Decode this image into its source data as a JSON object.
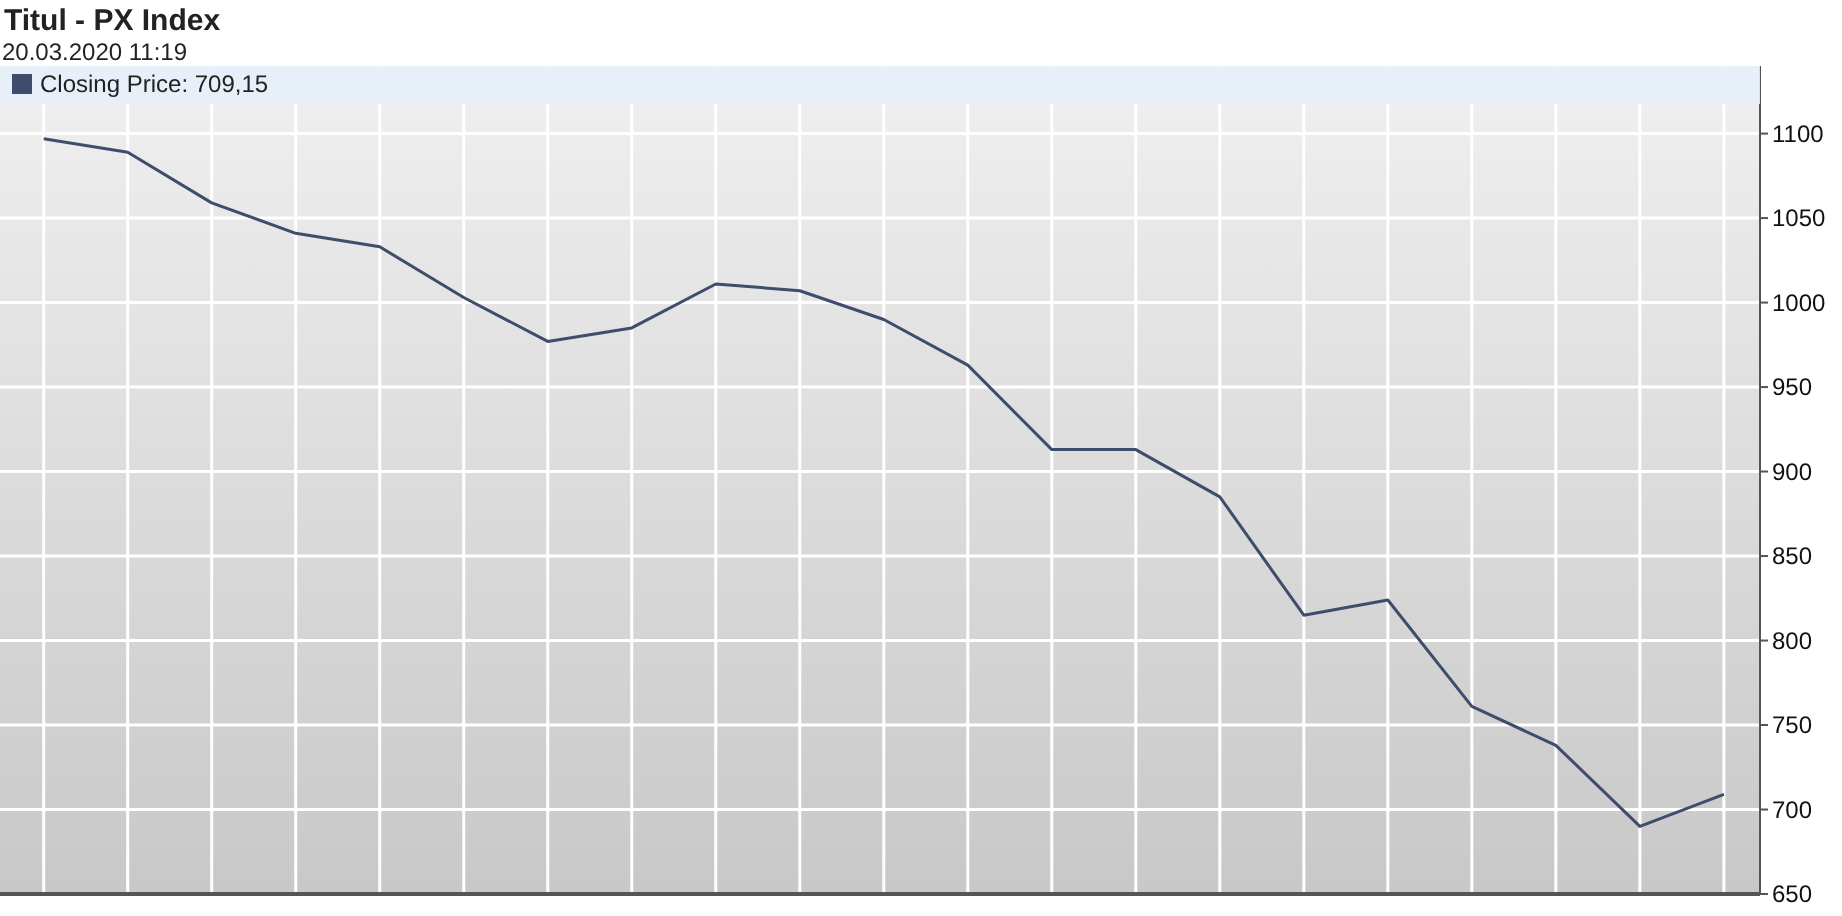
{
  "chart_data": {
    "type": "line",
    "title": "Titul - PX Index",
    "subtitle": "20.03.2020 11:19",
    "categories": [
      null,
      null,
      null,
      null,
      null,
      null,
      null,
      null,
      null,
      null,
      null,
      null,
      null,
      null,
      null,
      null,
      null,
      null,
      null,
      null,
      null
    ],
    "series": [
      {
        "name": "Closing Price: 709,15",
        "color": "#3d4d6b",
        "values": [
          1097,
          1089,
          1059,
          1041,
          1033,
          1003,
          977,
          985,
          1011,
          1007,
          990,
          963,
          913,
          913,
          885,
          815,
          824,
          761,
          738,
          690,
          709
        ]
      }
    ],
    "ylim": [
      650,
      1140
    ],
    "yticks": [
      650,
      700,
      750,
      800,
      850,
      900,
      950,
      1000,
      1050,
      1100
    ],
    "grid": true,
    "legend": "top left"
  }
}
